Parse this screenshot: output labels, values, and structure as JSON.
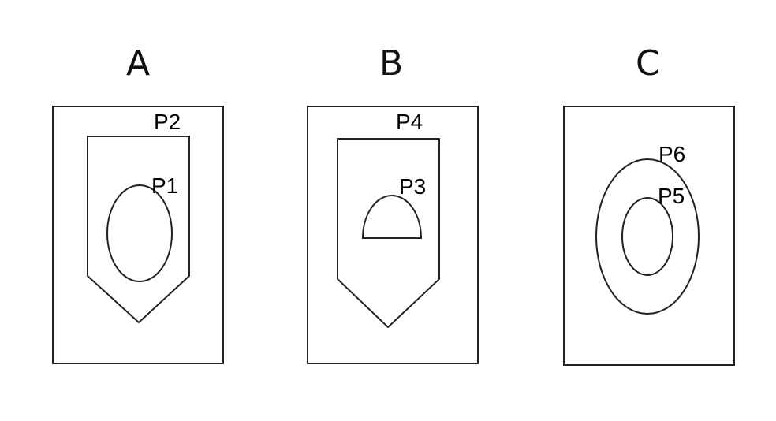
{
  "panels": [
    {
      "heading": "A",
      "labels": [
        "P2",
        "P1"
      ]
    },
    {
      "heading": "B",
      "labels": [
        "P4",
        "P3"
      ]
    },
    {
      "heading": "C",
      "labels": [
        "P6",
        "P5"
      ]
    }
  ],
  "colors": {
    "stroke": "#222222",
    "text": "#000000",
    "background": "#ffffff"
  }
}
